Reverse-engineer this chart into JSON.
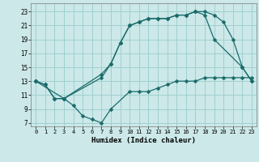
{
  "xlabel": "Humidex (Indice chaleur)",
  "bg_color": "#cce8e8",
  "grid_color": "#99cccc",
  "line_color": "#1a6b6b",
  "xlim": [
    -0.5,
    23.5
  ],
  "ylim": [
    6.5,
    24.2
  ],
  "xticks": [
    0,
    1,
    2,
    3,
    4,
    5,
    6,
    7,
    8,
    9,
    10,
    11,
    12,
    13,
    14,
    15,
    16,
    17,
    18,
    19,
    20,
    21,
    22,
    23
  ],
  "yticks": [
    7,
    9,
    11,
    13,
    15,
    17,
    19,
    21,
    23
  ],
  "line1_x": [
    0,
    1,
    2,
    3,
    4,
    5,
    6,
    7,
    8,
    10,
    11,
    12,
    13,
    14,
    15,
    16,
    17,
    18,
    19,
    20,
    21,
    22,
    23
  ],
  "line1_y": [
    13,
    12.5,
    10.5,
    10.5,
    9.5,
    8.0,
    7.5,
    7.0,
    9.0,
    11.5,
    11.5,
    11.5,
    12.0,
    12.5,
    13.0,
    13.0,
    13.0,
    13.5,
    13.5,
    13.5,
    13.5,
    13.5,
    13.5
  ],
  "line2_x": [
    0,
    3,
    7,
    8,
    9,
    10,
    11,
    12,
    13,
    14,
    15,
    16,
    17,
    18,
    19,
    22,
    23
  ],
  "line2_y": [
    13,
    10.5,
    13.5,
    15.5,
    18.5,
    21.0,
    21.5,
    22.0,
    22.0,
    22.0,
    22.5,
    22.5,
    23.0,
    22.5,
    19.0,
    15.0,
    13.0
  ],
  "line3_x": [
    0,
    1,
    2,
    3,
    7,
    8,
    9,
    10,
    11,
    12,
    13,
    14,
    15,
    16,
    17,
    18,
    19,
    20,
    21,
    22,
    23
  ],
  "line3_y": [
    13,
    12.5,
    10.5,
    10.5,
    14.0,
    15.5,
    18.5,
    21.0,
    21.5,
    22.0,
    22.0,
    22.0,
    22.5,
    22.5,
    23.0,
    23.0,
    22.5,
    21.5,
    19.0,
    15.0,
    13.0
  ]
}
